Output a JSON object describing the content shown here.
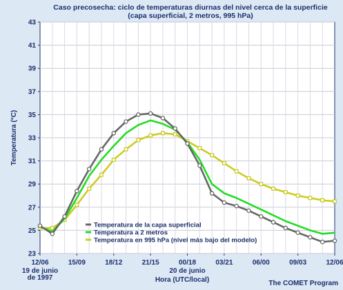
{
  "chart_data": {
    "type": "line",
    "title": "Caso precosecha: ciclo de temperaturas diurnas del nivel cerca de la superficie",
    "subtitle": "(capa superficial, 2 metros, 995 hPa)",
    "ylabel": "Temperatura (°C)",
    "xlabel": "Hora (UTC/local)",
    "credit": "The COMET Program",
    "ylim": [
      23,
      43
    ],
    "yticks": [
      23,
      25,
      27,
      29,
      31,
      33,
      35,
      37,
      39,
      41,
      43
    ],
    "xlim": [
      0,
      24
    ],
    "xticks": [
      {
        "x": 0,
        "label": "12/06"
      },
      {
        "x": 3,
        "label": "15/09"
      },
      {
        "x": 6,
        "label": "18/12"
      },
      {
        "x": 9,
        "label": "21/15"
      },
      {
        "x": 12,
        "label": "00/18"
      },
      {
        "x": 15,
        "label": "03/21"
      },
      {
        "x": 18,
        "label": "06/00"
      },
      {
        "x": 21,
        "label": "09/03"
      },
      {
        "x": 24,
        "label": "12/06"
      }
    ],
    "date_labels": [
      {
        "x": 0,
        "lines": [
          "19 de junio",
          "de 1997"
        ]
      },
      {
        "x": 12,
        "lines": [
          "20 de junio"
        ]
      }
    ],
    "grid": true,
    "legend_position": "bottom-left",
    "series": [
      {
        "name": "Temperatura de la capa superficial",
        "color": "#666666",
        "marker": "circle",
        "x": [
          0,
          1,
          2,
          3,
          4,
          5,
          6,
          7,
          8,
          9,
          10,
          11,
          12,
          13,
          14,
          15,
          16,
          17,
          18,
          19,
          20,
          21,
          22,
          23,
          24
        ],
        "y": [
          25.4,
          24.7,
          26.2,
          28.4,
          30.3,
          32.0,
          33.4,
          34.4,
          35.0,
          35.1,
          34.7,
          33.8,
          32.5,
          30.6,
          28.2,
          27.4,
          27.1,
          26.7,
          26.2,
          25.7,
          25.2,
          24.8,
          24.4,
          24.0,
          24.1
        ]
      },
      {
        "name": "Temperatura a 2 metros",
        "color": "#22dd22",
        "marker": "none",
        "x": [
          0,
          1,
          2,
          3,
          4,
          5,
          6,
          7,
          8,
          9,
          10,
          11,
          12,
          13,
          14,
          15,
          16,
          17,
          18,
          19,
          20,
          21,
          22,
          23,
          24
        ],
        "y": [
          25.3,
          24.9,
          26.0,
          27.8,
          29.7,
          31.1,
          32.3,
          33.4,
          34.1,
          34.5,
          34.2,
          33.7,
          32.6,
          31.1,
          29.0,
          28.2,
          27.8,
          27.3,
          26.8,
          26.3,
          25.8,
          25.4,
          25.0,
          24.7,
          24.8
        ]
      },
      {
        "name": "Temperatura en 995 hPa (nivel más bajo del modelo)",
        "color": "#cccc22",
        "marker": "square",
        "x": [
          0,
          1,
          2,
          3,
          4,
          5,
          6,
          7,
          8,
          9,
          10,
          11,
          12,
          13,
          14,
          15,
          16,
          17,
          18,
          19,
          20,
          21,
          22,
          23,
          24
        ],
        "y": [
          25.2,
          25.2,
          25.9,
          27.2,
          28.6,
          29.8,
          31.1,
          32.0,
          32.8,
          33.2,
          33.4,
          33.3,
          32.7,
          32.1,
          31.5,
          30.8,
          30.1,
          29.5,
          29.0,
          28.6,
          28.3,
          28.0,
          27.8,
          27.6,
          27.5
        ]
      }
    ]
  }
}
